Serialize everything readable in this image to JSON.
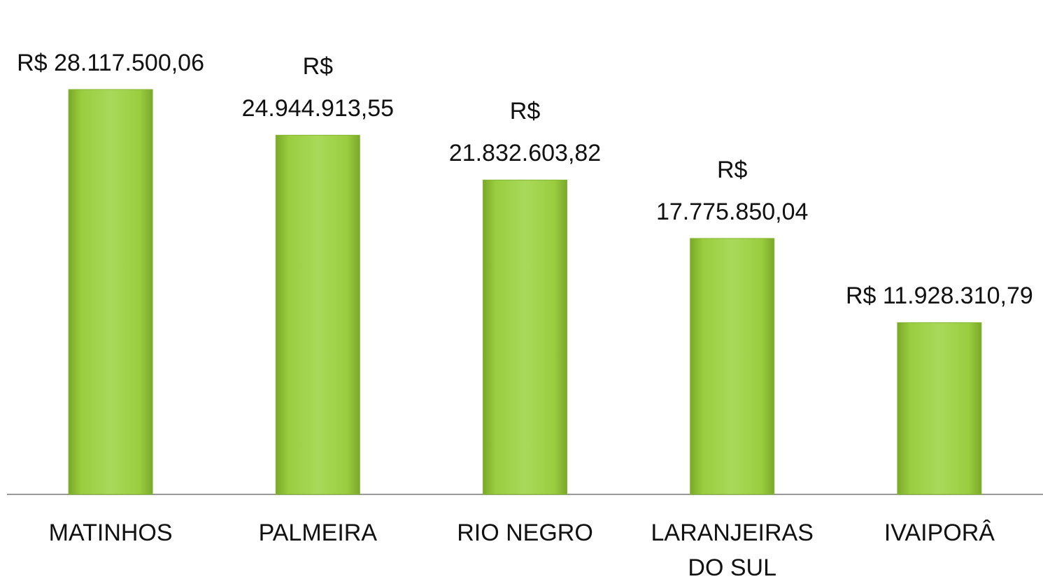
{
  "chart_data": {
    "type": "bar",
    "categories": [
      "MATINHOS",
      "PALMEIRA",
      "RIO NEGRO",
      "LARANJEIRAS DO SUL",
      "IVAIPORÂ"
    ],
    "values": [
      28117500.06,
      24944913.55,
      21832603.82,
      17775850.04,
      11928310.79
    ],
    "value_labels": [
      "R$ 28.117.500,06",
      "R$ 24.944.913,55",
      "R$ 21.832.603,82",
      "R$ 17.775.850,04",
      "R$ 11.928.310,79"
    ],
    "color": "#9acd3f"
  }
}
